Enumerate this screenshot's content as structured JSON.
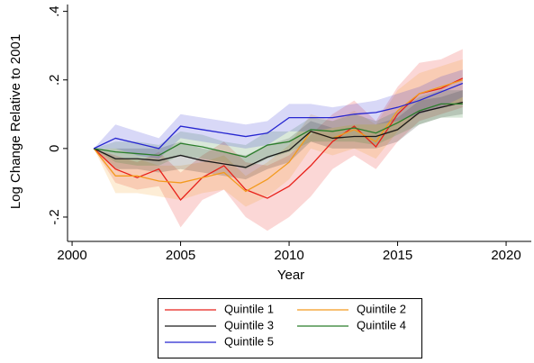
{
  "chart_data": {
    "type": "line",
    "x_label": "Year",
    "y_label": "Log  Change Relative to 2001",
    "x": [
      2001,
      2002,
      2003,
      2004,
      2005,
      2006,
      2007,
      2008,
      2009,
      2010,
      2011,
      2012,
      2013,
      2014,
      2015,
      2016,
      2017,
      2018
    ],
    "xlim": [
      1999.79,
      2021.16
    ],
    "xticks": [
      2000,
      2005,
      2010,
      2015,
      2020
    ],
    "ylim": [
      -0.271,
      0.42
    ],
    "yticks": [
      {
        "value": -0.2,
        "label": "-.2"
      },
      0,
      {
        "value": 0.2,
        "label": ".2"
      },
      {
        "value": 0.4,
        "label": ".4"
      }
    ],
    "series": [
      {
        "name": "Quintile 1",
        "color": "#e8211a",
        "values": [
          0,
          -0.06,
          -0.085,
          -0.06,
          -0.15,
          -0.085,
          -0.05,
          -0.12,
          -0.145,
          -0.11,
          -0.05,
          0.02,
          0.065,
          0.005,
          0.1,
          0.16,
          0.175,
          0.205
        ],
        "ci_lower": [
          0,
          -0.1,
          -0.12,
          -0.11,
          -0.23,
          -0.15,
          -0.12,
          -0.2,
          -0.24,
          -0.2,
          -0.14,
          -0.06,
          -0.02,
          -0.06,
          0.02,
          0.08,
          0.1,
          0.12
        ],
        "ci_upper": [
          0,
          -0.02,
          -0.04,
          -0.01,
          -0.07,
          -0.02,
          0.02,
          -0.04,
          -0.05,
          -0.02,
          0.04,
          0.1,
          0.14,
          0.08,
          0.18,
          0.25,
          0.26,
          0.29
        ]
      },
      {
        "name": "Quintile 2",
        "color": "#f39a1d",
        "values": [
          0,
          -0.08,
          -0.08,
          -0.095,
          -0.1,
          -0.085,
          -0.07,
          -0.125,
          -0.09,
          -0.04,
          0.05,
          0.03,
          0.055,
          0.02,
          0.11,
          0.16,
          0.18,
          0.2
        ],
        "ci_lower": [
          0,
          -0.13,
          -0.13,
          -0.14,
          -0.15,
          -0.13,
          -0.12,
          -0.17,
          -0.14,
          -0.09,
          0,
          -0.02,
          0,
          -0.03,
          0.05,
          0.1,
          0.12,
          0.13
        ],
        "ci_upper": [
          0,
          -0.03,
          -0.03,
          -0.05,
          -0.05,
          -0.04,
          -0.02,
          -0.08,
          -0.04,
          0.01,
          0.1,
          0.08,
          0.11,
          0.07,
          0.17,
          0.22,
          0.24,
          0.26
        ]
      },
      {
        "name": "Quintile 3",
        "color": "#1a1a1a",
        "values": [
          0,
          -0.03,
          -0.03,
          -0.035,
          -0.02,
          -0.035,
          -0.045,
          -0.055,
          -0.025,
          -0.005,
          0.05,
          0.03,
          0.035,
          0.035,
          0.055,
          0.105,
          0.12,
          0.135
        ],
        "ci_lower": [
          0,
          -0.06,
          -0.06,
          -0.07,
          -0.06,
          -0.07,
          -0.08,
          -0.09,
          -0.06,
          -0.04,
          0.02,
          0,
          0,
          0,
          0.02,
          0.07,
          0.09,
          0.1
        ],
        "ci_upper": [
          0,
          0,
          0,
          0,
          0.02,
          0,
          -0.01,
          -0.02,
          0.01,
          0.03,
          0.08,
          0.06,
          0.07,
          0.07,
          0.09,
          0.14,
          0.15,
          0.17
        ]
      },
      {
        "name": "Quintile 4",
        "color": "#2a7d2a",
        "values": [
          0,
          -0.01,
          -0.015,
          -0.02,
          0.015,
          0.005,
          -0.01,
          -0.025,
          0.01,
          0.02,
          0.055,
          0.05,
          0.06,
          0.045,
          0.075,
          0.11,
          0.13,
          0.13
        ],
        "ci_lower": [
          0,
          -0.04,
          -0.05,
          -0.05,
          -0.02,
          -0.03,
          -0.04,
          -0.06,
          -0.03,
          -0.01,
          0.02,
          0.02,
          0.02,
          0.01,
          0.04,
          0.07,
          0.09,
          0.09
        ],
        "ci_upper": [
          0,
          0.02,
          0.02,
          0.01,
          0.05,
          0.04,
          0.02,
          0.01,
          0.05,
          0.05,
          0.09,
          0.08,
          0.1,
          0.08,
          0.11,
          0.15,
          0.17,
          0.17
        ]
      },
      {
        "name": "Quintile 5",
        "color": "#2626d0",
        "values": [
          0,
          0.03,
          0.015,
          0,
          0.065,
          0.055,
          0.045,
          0.035,
          0.045,
          0.09,
          0.09,
          0.09,
          0.1,
          0.105,
          0.12,
          0.14,
          0.165,
          0.19
        ],
        "ci_lower": [
          0,
          0,
          -0.02,
          -0.03,
          0.03,
          0.02,
          0.01,
          0,
          0.01,
          0.05,
          0.05,
          0.06,
          0.07,
          0.07,
          0.08,
          0.1,
          0.12,
          0.15
        ],
        "ci_upper": [
          0,
          0.07,
          0.05,
          0.03,
          0.1,
          0.09,
          0.08,
          0.07,
          0.08,
          0.13,
          0.13,
          0.12,
          0.13,
          0.14,
          0.16,
          0.18,
          0.21,
          0.23
        ]
      }
    ]
  }
}
